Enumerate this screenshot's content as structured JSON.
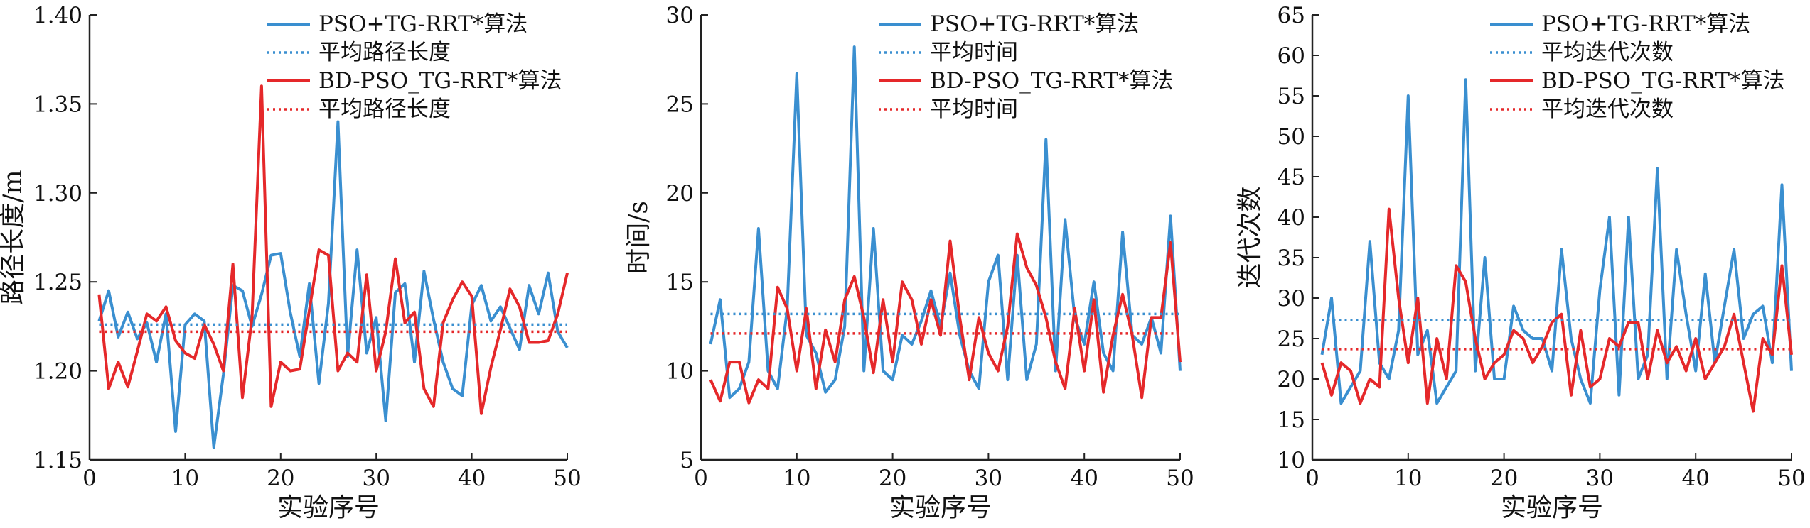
{
  "colors": {
    "blue": "#3a8fd0",
    "red": "#e5282a",
    "axis": "#222222"
  },
  "chart_data": [
    {
      "type": "line",
      "xlabel": "实验序号",
      "ylabel": "路径长度/m",
      "xlim": [
        0,
        50
      ],
      "ylim": [
        1.15,
        1.4
      ],
      "xticks": [
        0,
        10,
        20,
        30,
        40,
        50
      ],
      "yticks": [
        1.15,
        1.2,
        1.25,
        1.3,
        1.35,
        1.4
      ],
      "ytick_labels": [
        "1.15",
        "1.20",
        "1.25",
        "1.30",
        "1.35",
        "1.40"
      ],
      "legend_position": "top-right",
      "series": [
        {
          "name": "PSO+TG-RRT*算法",
          "style": "solid",
          "color": "#3a8fd0",
          "values": [
            1.228,
            1.245,
            1.219,
            1.233,
            1.218,
            1.227,
            1.205,
            1.232,
            1.166,
            1.226,
            1.232,
            1.228,
            1.157,
            1.198,
            1.248,
            1.245,
            1.225,
            1.243,
            1.265,
            1.266,
            1.233,
            1.208,
            1.249,
            1.193,
            1.238,
            1.34,
            1.208,
            1.268,
            1.21,
            1.23,
            1.172,
            1.244,
            1.249,
            1.205,
            1.256,
            1.229,
            1.205,
            1.19,
            1.186,
            1.237,
            1.248,
            1.228,
            1.236,
            1.224,
            1.212,
            1.248,
            1.232,
            1.255,
            1.222,
            1.213
          ]
        },
        {
          "name": "平均路径长度",
          "style": "dotted",
          "color": "#3a8fd0",
          "values": [
            1.226
          ]
        },
        {
          "name": "BD-PSO_TG-RRT*算法",
          "style": "solid",
          "color": "#e5282a",
          "values": [
            1.243,
            1.19,
            1.205,
            1.191,
            1.211,
            1.232,
            1.228,
            1.236,
            1.217,
            1.21,
            1.207,
            1.226,
            1.215,
            1.2,
            1.26,
            1.185,
            1.23,
            1.36,
            1.18,
            1.205,
            1.2,
            1.201,
            1.234,
            1.268,
            1.265,
            1.2,
            1.21,
            1.205,
            1.254,
            1.2,
            1.222,
            1.263,
            1.227,
            1.233,
            1.19,
            1.18,
            1.227,
            1.24,
            1.25,
            1.242,
            1.176,
            1.202,
            1.223,
            1.246,
            1.236,
            1.216,
            1.216,
            1.217,
            1.232,
            1.255
          ]
        },
        {
          "name": "平均路径长度",
          "style": "dotted",
          "color": "#e5282a",
          "values": [
            1.222
          ]
        }
      ]
    },
    {
      "type": "line",
      "xlabel": "实验序号",
      "ylabel": "时间/s",
      "xlim": [
        0,
        50
      ],
      "ylim": [
        5,
        30
      ],
      "xticks": [
        0,
        10,
        20,
        30,
        40,
        50
      ],
      "yticks": [
        5,
        10,
        15,
        20,
        25,
        30
      ],
      "ytick_labels": [
        "5",
        "10",
        "15",
        "20",
        "25",
        "30"
      ],
      "legend_position": "top-right",
      "series": [
        {
          "name": "PSO+TG-RRT*算法",
          "style": "solid",
          "color": "#3a8fd0",
          "values": [
            11.5,
            14.0,
            8.5,
            9.0,
            10.5,
            18.0,
            10.0,
            9.0,
            13.5,
            26.7,
            12.0,
            11.0,
            8.8,
            9.5,
            12.5,
            28.2,
            10.0,
            18.0,
            10.0,
            9.5,
            12.0,
            11.5,
            12.8,
            14.5,
            12.5,
            15.5,
            12.0,
            10.0,
            9.0,
            15.0,
            16.5,
            9.5,
            16.5,
            9.5,
            11.5,
            23.0,
            10.0,
            18.5,
            13.0,
            11.5,
            15.0,
            11.0,
            10.0,
            17.8,
            12.0,
            11.5,
            13.0,
            11.0,
            18.7,
            10.0
          ]
        },
        {
          "name": "平均时间",
          "style": "dotted",
          "color": "#3a8fd0",
          "values": [
            13.2
          ]
        },
        {
          "name": "BD-PSO_TG-RRT*算法",
          "style": "solid",
          "color": "#e5282a",
          "values": [
            9.5,
            8.3,
            10.5,
            10.5,
            8.2,
            9.5,
            9.0,
            14.7,
            13.5,
            10.0,
            13.5,
            9.0,
            12.3,
            10.5,
            14.0,
            15.3,
            13.0,
            9.9,
            14.0,
            10.5,
            15.0,
            14.0,
            11.5,
            14.0,
            12.0,
            17.3,
            13.0,
            9.5,
            13.0,
            11.0,
            10.0,
            12.5,
            17.7,
            15.8,
            14.8,
            13.0,
            10.5,
            9.0,
            13.5,
            10.0,
            14.0,
            8.8,
            12.0,
            14.3,
            12.0,
            8.5,
            13.0,
            13.0,
            17.2,
            10.5
          ]
        },
        {
          "name": "平均时间",
          "style": "dotted",
          "color": "#e5282a",
          "values": [
            12.1
          ]
        }
      ]
    },
    {
      "type": "line",
      "xlabel": "实验序号",
      "ylabel": "迭代次数",
      "xlim": [
        0,
        50
      ],
      "ylim": [
        10,
        65
      ],
      "xticks": [
        0,
        10,
        20,
        30,
        40,
        50
      ],
      "yticks": [
        10,
        15,
        20,
        25,
        30,
        35,
        40,
        45,
        50,
        55,
        60,
        65
      ],
      "ytick_labels": [
        "10",
        "15",
        "20",
        "25",
        "30",
        "35",
        "40",
        "45",
        "50",
        "55",
        "60",
        "65"
      ],
      "legend_position": "top-right",
      "series": [
        {
          "name": "PSO+TG-RRT*算法",
          "style": "solid",
          "color": "#3a8fd0",
          "values": [
            23,
            30,
            17,
            19,
            21,
            37,
            22,
            20,
            26,
            55,
            23,
            26,
            17,
            19,
            21,
            57,
            21,
            35,
            20,
            20,
            29,
            26,
            25,
            25,
            21,
            36,
            25,
            20,
            17,
            31,
            40,
            18,
            40,
            20,
            23,
            46,
            20,
            36,
            28,
            21,
            33,
            22,
            29,
            36,
            25,
            28,
            29,
            22,
            44,
            21
          ]
        },
        {
          "name": "平均迭代次数",
          "style": "dotted",
          "color": "#3a8fd0",
          "values": [
            27.3
          ]
        },
        {
          "name": "BD-PSO_TG-RRT*算法",
          "style": "solid",
          "color": "#e5282a",
          "values": [
            22,
            18,
            22,
            21,
            17,
            20,
            19,
            41,
            30,
            22,
            30,
            17,
            25,
            20,
            34,
            32,
            25,
            20,
            22,
            23,
            26,
            25,
            22,
            24,
            27,
            28,
            18,
            26,
            19,
            20,
            25,
            24,
            27,
            27,
            20,
            26,
            22,
            24,
            21,
            25,
            20,
            22,
            24,
            28,
            22,
            16,
            25,
            23,
            34,
            23
          ]
        },
        {
          "name": "平均迭代次数",
          "style": "dotted",
          "color": "#e5282a",
          "values": [
            23.7
          ]
        }
      ]
    }
  ]
}
